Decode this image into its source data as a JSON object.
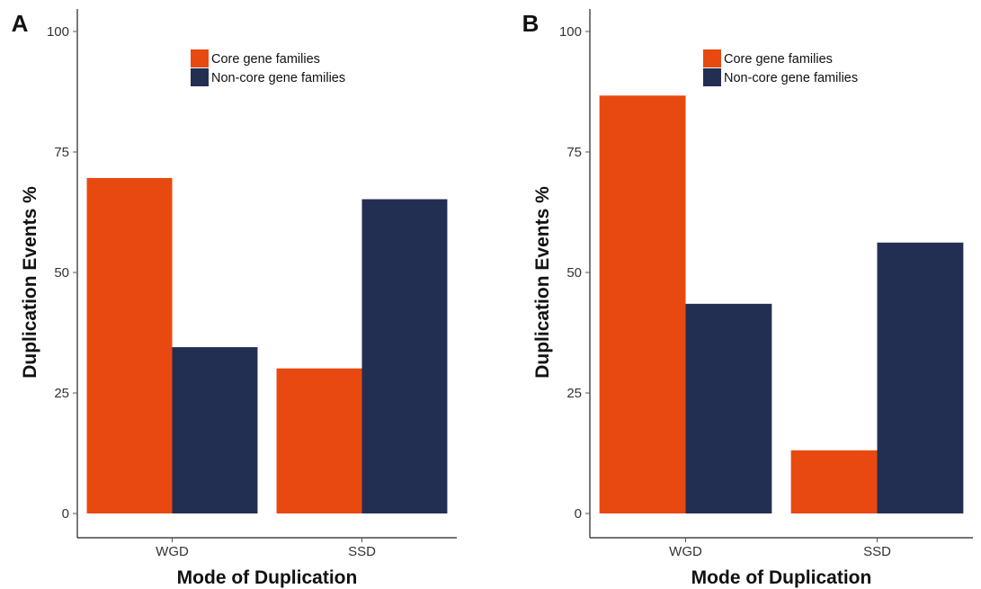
{
  "chart_data": [
    {
      "type": "bar",
      "panel_label": "A",
      "categories": [
        "WGD",
        "SSD"
      ],
      "series": [
        {
          "name": "Core gene families",
          "color": "#E84910",
          "values": [
            69.6,
            30.1
          ]
        },
        {
          "name": "Non-core gene families",
          "color": "#232F52",
          "values": [
            34.5,
            65.2
          ]
        }
      ],
      "xlabel": "Mode of Duplication",
      "ylabel": "Duplication Events %",
      "ylim": [
        0,
        100
      ],
      "yticks": [
        0,
        25,
        50,
        75,
        100
      ],
      "legend_position": "top",
      "grid": false
    },
    {
      "type": "bar",
      "panel_label": "B",
      "categories": [
        "WGD",
        "SSD"
      ],
      "series": [
        {
          "name": "Core gene families",
          "color": "#E84910",
          "values": [
            86.7,
            13.1
          ]
        },
        {
          "name": "Non-core gene families",
          "color": "#232F52",
          "values": [
            43.5,
            56.2
          ]
        }
      ],
      "xlabel": "Mode of Duplication",
      "ylabel": "Duplication Events %",
      "ylim": [
        0,
        100
      ],
      "yticks": [
        0,
        25,
        50,
        75,
        100
      ],
      "legend_position": "top",
      "grid": false
    }
  ]
}
